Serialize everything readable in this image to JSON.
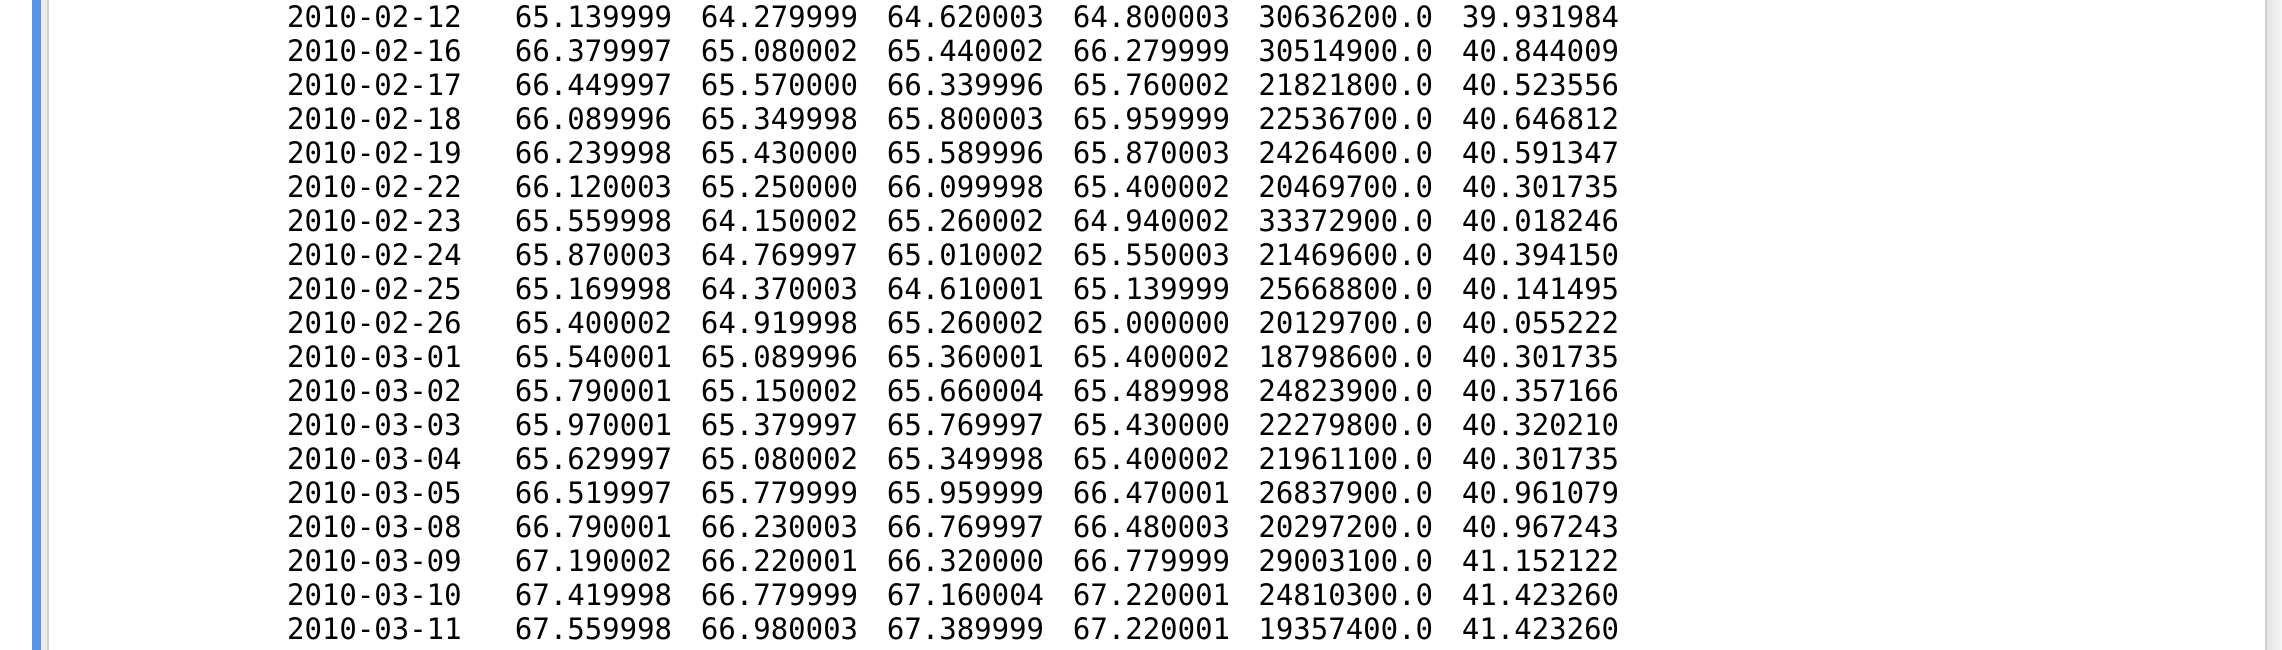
{
  "colors": {
    "accent_bar": "#5a96e6",
    "text": "#000000",
    "background": "#ffffff"
  },
  "rows": [
    [
      "2010-02-12",
      "65.139999",
      "64.279999",
      "64.620003",
      "64.800003",
      "30636200.0",
      "39.931984"
    ],
    [
      "2010-02-16",
      "66.379997",
      "65.080002",
      "65.440002",
      "66.279999",
      "30514900.0",
      "40.844009"
    ],
    [
      "2010-02-17",
      "66.449997",
      "65.570000",
      "66.339996",
      "65.760002",
      "21821800.0",
      "40.523556"
    ],
    [
      "2010-02-18",
      "66.089996",
      "65.349998",
      "65.800003",
      "65.959999",
      "22536700.0",
      "40.646812"
    ],
    [
      "2010-02-19",
      "66.239998",
      "65.430000",
      "65.589996",
      "65.870003",
      "24264600.0",
      "40.591347"
    ],
    [
      "2010-02-22",
      "66.120003",
      "65.250000",
      "66.099998",
      "65.400002",
      "20469700.0",
      "40.301735"
    ],
    [
      "2010-02-23",
      "65.559998",
      "64.150002",
      "65.260002",
      "64.940002",
      "33372900.0",
      "40.018246"
    ],
    [
      "2010-02-24",
      "65.870003",
      "64.769997",
      "65.010002",
      "65.550003",
      "21469600.0",
      "40.394150"
    ],
    [
      "2010-02-25",
      "65.169998",
      "64.370003",
      "64.610001",
      "65.139999",
      "25668800.0",
      "40.141495"
    ],
    [
      "2010-02-26",
      "65.400002",
      "64.919998",
      "65.260002",
      "65.000000",
      "20129700.0",
      "40.055222"
    ],
    [
      "2010-03-01",
      "65.540001",
      "65.089996",
      "65.360001",
      "65.400002",
      "18798600.0",
      "40.301735"
    ],
    [
      "2010-03-02",
      "65.790001",
      "65.150002",
      "65.660004",
      "65.489998",
      "24823900.0",
      "40.357166"
    ],
    [
      "2010-03-03",
      "65.970001",
      "65.379997",
      "65.769997",
      "65.430000",
      "22279800.0",
      "40.320210"
    ],
    [
      "2010-03-04",
      "65.629997",
      "65.080002",
      "65.349998",
      "65.400002",
      "21961100.0",
      "40.301735"
    ],
    [
      "2010-03-05",
      "66.519997",
      "65.779999",
      "65.959999",
      "66.470001",
      "26837900.0",
      "40.961079"
    ],
    [
      "2010-03-08",
      "66.790001",
      "66.230003",
      "66.769997",
      "66.480003",
      "20297200.0",
      "40.967243"
    ],
    [
      "2010-03-09",
      "67.190002",
      "66.220001",
      "66.320000",
      "66.779999",
      "29003100.0",
      "41.152122"
    ],
    [
      "2010-03-10",
      "67.419998",
      "66.779999",
      "67.160004",
      "67.220001",
      "24810300.0",
      "41.423260"
    ],
    [
      "2010-03-11",
      "67.559998",
      "66.980003",
      "67.389999",
      "67.220001",
      "19357400.0",
      "41.423260"
    ]
  ]
}
